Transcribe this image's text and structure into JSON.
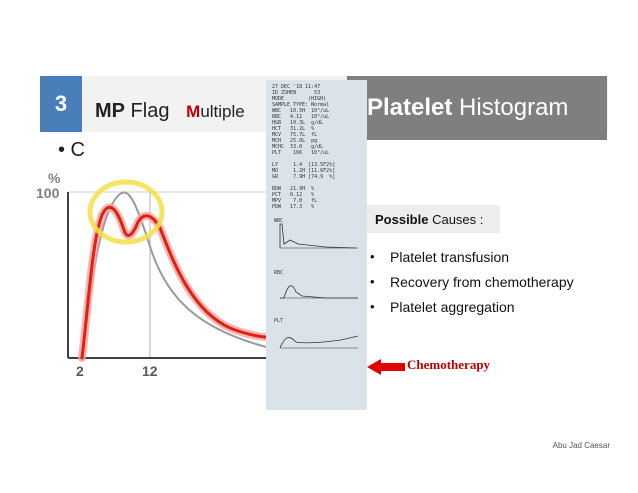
{
  "slide": {
    "number": "3",
    "title_bold": "MP",
    "title_rest": " Flag",
    "subtitle_first": "M",
    "subtitle_rest": "ultiple",
    "bullet": "• C"
  },
  "panel": {
    "title_bold": "Platelet",
    "title_rest": " Histogram"
  },
  "chart": {
    "y_unit": "%",
    "y_tick": "100",
    "x_ticks": [
      "2",
      "12"
    ]
  },
  "printout": {
    "lines": [
      "27 DEC '18 11:47",
      "ID ZSHEN      53",
      "MODE        (HIGH)",
      "SAMPLE TYPE: Normal",
      "WBC   10.5H  10³/uL",
      "RBC   4.12   10⁶/uL",
      "HGB   10.3L  g/dL",
      "HCT   31.2L  %",
      "MCV   75.7L  fL",
      "MCH   25.0L  pg",
      "MCHC  33.0   g/dL",
      "PLT    166   10³/uL",
      "",
      "LY     1.4  [13.5F2%]",
      "MO     1.2H [11.6F2%]",
      "GR     7.9H [74.9  %]",
      "",
      "RDW   21.9H  %",
      "PCT   0.12   %",
      "MPV    7.0   fL",
      "PDW   17.3   %"
    ],
    "wbc_label": "WBC",
    "rbc_label": "RBC",
    "plt_label": "PLT"
  },
  "causes": {
    "heading_bold": "Possible",
    "heading_rest": " Causes :",
    "items": [
      "Platelet transfusion",
      "Recovery from chemotherapy",
      "Platelet aggregation"
    ]
  },
  "annotation": {
    "label": "Chemotherapy"
  },
  "footer": {
    "credit": "Abu Jad Caesar"
  },
  "colors": {
    "badge": "#4a7ebb",
    "panel": "#7f7f7f",
    "curve": "#e02010",
    "highlight": "#f5e04a",
    "annotation": "#c00000"
  }
}
